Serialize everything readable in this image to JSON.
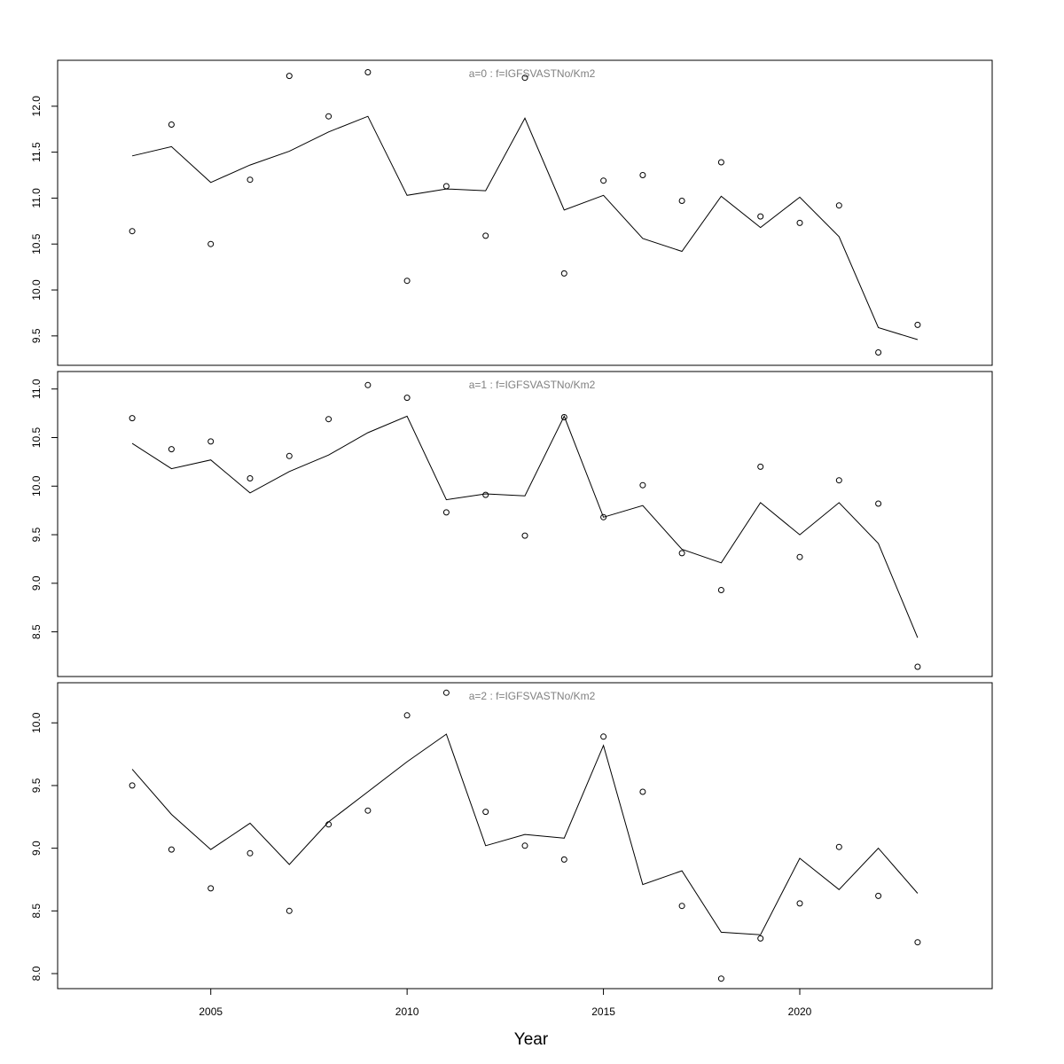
{
  "chart_data": {
    "type": "line",
    "xlabel": "Year",
    "x_ticks": [
      2005,
      2010,
      2015,
      2020
    ],
    "xlim": [
      2001.1,
      2024.9
    ],
    "years": [
      2003,
      2004,
      2005,
      2006,
      2007,
      2008,
      2009,
      2010,
      2011,
      2012,
      2013,
      2014,
      2015,
      2016,
      2017,
      2018,
      2019,
      2020,
      2021,
      2022,
      2023
    ],
    "panels": [
      {
        "label": "a=0  :  f=IGFSVASTNo/Km2",
        "ylim": [
          9.18,
          12.5
        ],
        "y_ticks": [
          9.5,
          10.0,
          10.5,
          11.0,
          11.5,
          12.0
        ],
        "y_tick_labels": [
          "9.5",
          "10.0",
          "10.5",
          "11.0",
          "11.5",
          "12.0"
        ],
        "series": [
          {
            "kind": "fitted-line",
            "values": [
              11.46,
              11.56,
              11.17,
              11.36,
              11.51,
              11.72,
              11.89,
              11.03,
              11.1,
              11.08,
              11.87,
              10.87,
              11.03,
              10.56,
              10.42,
              11.02,
              10.68,
              11.01,
              10.58,
              9.59,
              9.46
            ]
          },
          {
            "kind": "observed-points",
            "values": [
              10.64,
              11.8,
              10.5,
              11.2,
              12.33,
              11.89,
              12.37,
              10.1,
              11.13,
              10.59,
              12.31,
              10.18,
              11.19,
              11.25,
              10.97,
              11.39,
              10.8,
              10.73,
              10.92,
              9.32,
              9.62
            ]
          }
        ]
      },
      {
        "label": "a=1  :  f=IGFSVASTNo/Km2",
        "ylim": [
          8.04,
          11.18
        ],
        "y_ticks": [
          8.5,
          9.0,
          9.5,
          10.0,
          10.5,
          11.0
        ],
        "y_tick_labels": [
          "8.5",
          "9.0",
          "9.5",
          "10.0",
          "10.5",
          "11.0"
        ],
        "series": [
          {
            "kind": "fitted-line",
            "values": [
              10.44,
              10.18,
              10.27,
              9.93,
              10.15,
              10.32,
              10.55,
              10.72,
              9.86,
              9.92,
              9.9,
              10.72,
              9.68,
              9.8,
              9.35,
              9.21,
              9.83,
              9.5,
              9.83,
              9.41,
              8.44
            ]
          },
          {
            "kind": "observed-points",
            "values": [
              10.7,
              10.38,
              10.46,
              10.08,
              10.31,
              10.69,
              11.04,
              10.91,
              9.73,
              9.91,
              9.49,
              10.71,
              9.68,
              10.01,
              9.31,
              8.93,
              10.2,
              9.27,
              10.06,
              9.82,
              8.14
            ]
          }
        ]
      },
      {
        "label": "a=2  :  f=IGFSVASTNo/Km2",
        "ylim": [
          7.88,
          10.32
        ],
        "y_ticks": [
          8.0,
          8.5,
          9.0,
          9.5,
          10.0
        ],
        "y_tick_labels": [
          "8.0",
          "8.5",
          "9.0",
          "9.5",
          "10.0"
        ],
        "series": [
          {
            "kind": "fitted-line",
            "values": [
              9.63,
              9.27,
              8.99,
              9.2,
              8.87,
              9.21,
              9.45,
              9.69,
              9.91,
              9.02,
              9.11,
              9.08,
              9.82,
              8.71,
              8.82,
              8.33,
              8.31,
              8.92,
              8.67,
              9.0,
              8.64
            ]
          },
          {
            "kind": "observed-points",
            "values": [
              9.5,
              8.99,
              8.68,
              8.96,
              8.5,
              9.19,
              9.3,
              10.06,
              10.24,
              9.29,
              9.02,
              8.91,
              9.89,
              9.45,
              8.54,
              7.96,
              8.28,
              8.56,
              9.01,
              8.62,
              8.25
            ]
          }
        ]
      }
    ]
  }
}
